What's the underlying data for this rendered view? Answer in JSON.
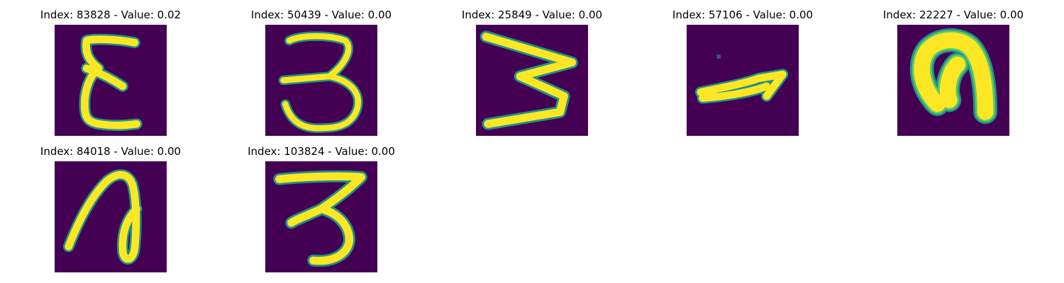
{
  "colors": {
    "background": "#440154",
    "stroke_core": "#fde725",
    "stroke_edge": "#21918c",
    "stroke_mid": "#5ec962"
  },
  "images": [
    {
      "title": "Index: 83828 - Value: 0.02",
      "depicts": "handwritten-E"
    },
    {
      "title": "Index: 50439 - Value: 0.00",
      "depicts": "handwritten-3"
    },
    {
      "title": "Index: 25849 - Value: 0.00",
      "depicts": "handwritten-rotated-3"
    },
    {
      "title": "Index: 57106 - Value: 0.00",
      "depicts": "handwritten-stroke"
    },
    {
      "title": "Index: 22227 - Value: 0.00",
      "depicts": "handwritten-arch"
    },
    {
      "title": "Index: 84018 - Value: 0.00",
      "depicts": "handwritten-loop"
    },
    {
      "title": "Index: 103824 - Value: 0.00",
      "depicts": "handwritten-3"
    }
  ]
}
